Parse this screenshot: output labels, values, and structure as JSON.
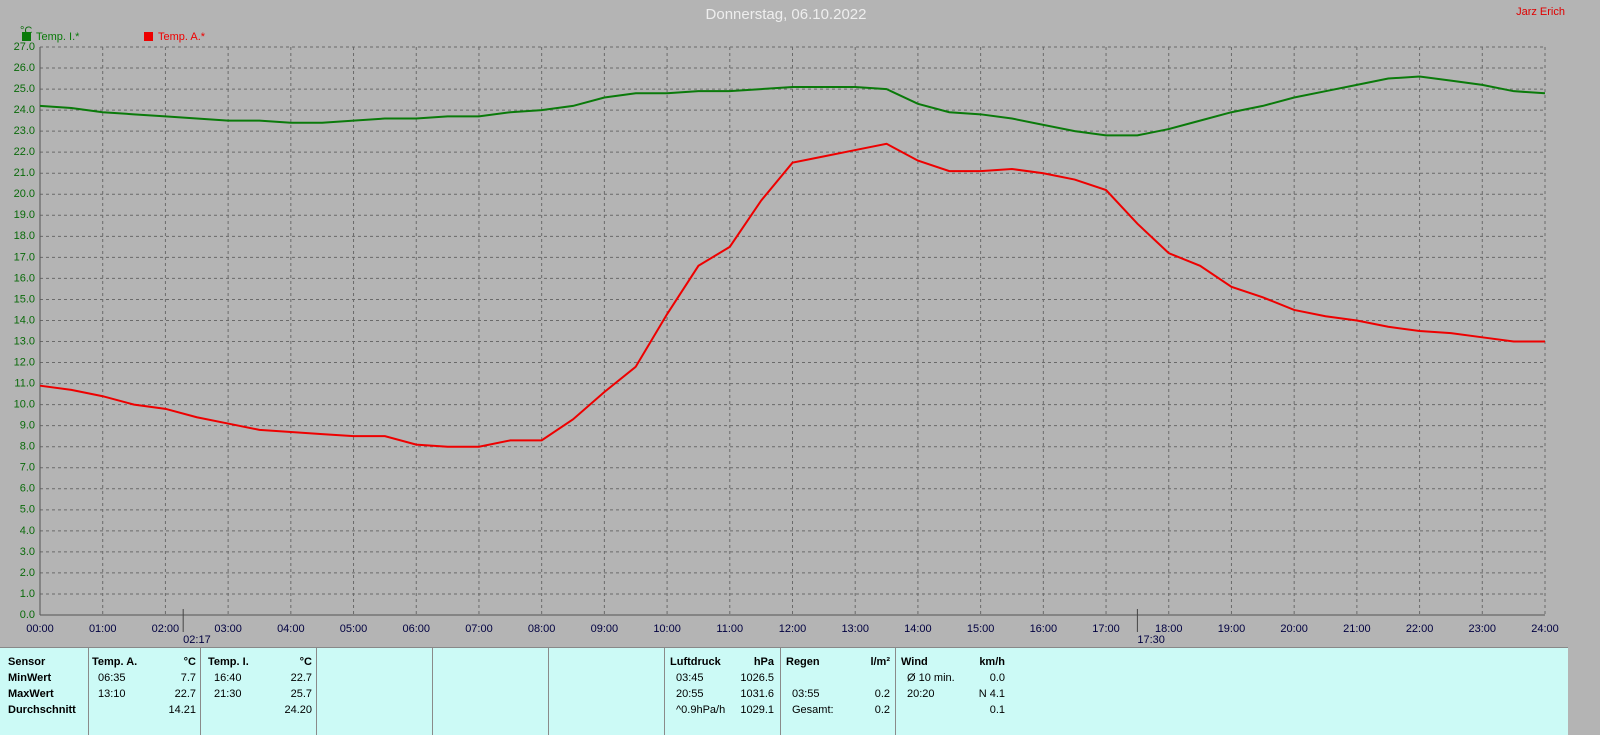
{
  "chart_data": {
    "type": "line",
    "title": "Donnerstag, 06.10.2022",
    "author": "Jarz Erich",
    "y_label": "°C",
    "x": [
      0,
      0.5,
      1,
      1.5,
      2,
      2.5,
      3,
      3.5,
      4,
      4.5,
      5,
      5.5,
      6,
      6.5,
      7,
      7.5,
      8,
      8.5,
      9,
      9.5,
      10,
      10.5,
      11,
      11.5,
      12,
      12.5,
      13,
      13.5,
      14,
      14.5,
      15,
      15.5,
      16,
      16.5,
      17,
      17.5,
      18,
      18.5,
      19,
      19.5,
      20,
      20.5,
      21,
      21.5,
      22,
      22.5,
      23,
      23.5,
      24
    ],
    "series": [
      {
        "name": "Temp. I.*",
        "color": "#0a7a0a",
        "values": [
          24.2,
          24.1,
          23.9,
          23.8,
          23.7,
          23.6,
          23.5,
          23.5,
          23.4,
          23.4,
          23.5,
          23.6,
          23.6,
          23.7,
          23.7,
          23.9,
          24.0,
          24.2,
          24.6,
          24.8,
          24.8,
          24.9,
          24.9,
          25.0,
          25.1,
          25.1,
          25.1,
          25.0,
          24.3,
          23.9,
          23.8,
          23.6,
          23.3,
          23.0,
          22.8,
          22.8,
          23.1,
          23.5,
          23.9,
          24.2,
          24.6,
          24.9,
          25.2,
          25.5,
          25.6,
          25.4,
          25.2,
          24.9,
          24.8
        ]
      },
      {
        "name": "Temp. A.*",
        "color": "#ee0000",
        "values": [
          10.9,
          10.7,
          10.4,
          10.0,
          9.8,
          9.4,
          9.1,
          8.8,
          8.7,
          8.6,
          8.5,
          8.5,
          8.1,
          8.0,
          8.0,
          8.3,
          8.3,
          9.3,
          10.6,
          11.8,
          14.3,
          16.6,
          17.5,
          19.7,
          21.5,
          21.8,
          22.1,
          22.4,
          21.6,
          21.1,
          21.1,
          21.2,
          21.0,
          20.7,
          20.2,
          18.6,
          17.2,
          16.6,
          15.6,
          15.1,
          14.5,
          14.2,
          14.0,
          13.7,
          13.5,
          13.4,
          13.2,
          13.0,
          13.0
        ]
      }
    ],
    "xlim": [
      0,
      24
    ],
    "ylim": [
      0,
      27
    ],
    "grid": true,
    "xticks": [
      {
        "value": 0,
        "label": "00:00"
      },
      {
        "value": 1,
        "label": "01:00"
      },
      {
        "value": 2,
        "label": "02:00"
      },
      {
        "value": 3,
        "label": "03:00"
      },
      {
        "value": 4,
        "label": "04:00"
      },
      {
        "value": 5,
        "label": "05:00"
      },
      {
        "value": 6,
        "label": "06:00"
      },
      {
        "value": 7,
        "label": "07:00"
      },
      {
        "value": 8,
        "label": "08:00"
      },
      {
        "value": 9,
        "label": "09:00"
      },
      {
        "value": 10,
        "label": "10:00"
      },
      {
        "value": 11,
        "label": "11:00"
      },
      {
        "value": 12,
        "label": "12:00"
      },
      {
        "value": 13,
        "label": "13:00"
      },
      {
        "value": 14,
        "label": "14:00"
      },
      {
        "value": 15,
        "label": "15:00"
      },
      {
        "value": 16,
        "label": "16:00"
      },
      {
        "value": 17,
        "label": "17:00"
      },
      {
        "value": 18,
        "label": "18:00"
      },
      {
        "value": 19,
        "label": "19:00"
      },
      {
        "value": 20,
        "label": "20:00"
      },
      {
        "value": 21,
        "label": "21:00"
      },
      {
        "value": 22,
        "label": "22:00"
      },
      {
        "value": 23,
        "label": "23:00"
      },
      {
        "value": 24,
        "label": "24:00"
      }
    ],
    "yticks": [
      {
        "value": 0,
        "label": "0.0"
      },
      {
        "value": 1,
        "label": "1.0"
      },
      {
        "value": 2,
        "label": "2.0"
      },
      {
        "value": 3,
        "label": "3.0"
      },
      {
        "value": 4,
        "label": "4.0"
      },
      {
        "value": 5,
        "label": "5.0"
      },
      {
        "value": 6,
        "label": "6.0"
      },
      {
        "value": 7,
        "label": "7.0"
      },
      {
        "value": 8,
        "label": "8.0"
      },
      {
        "value": 9,
        "label": "9.0"
      },
      {
        "value": 10,
        "label": "10.0"
      },
      {
        "value": 11,
        "label": "11.0"
      },
      {
        "value": 12,
        "label": "12.0"
      },
      {
        "value": 13,
        "label": "13.0"
      },
      {
        "value": 14,
        "label": "14.0"
      },
      {
        "value": 15,
        "label": "15.0"
      },
      {
        "value": 16,
        "label": "16.0"
      },
      {
        "value": 17,
        "label": "17.0"
      },
      {
        "value": 18,
        "label": "18.0"
      },
      {
        "value": 19,
        "label": "19.0"
      },
      {
        "value": 20,
        "label": "20.0"
      },
      {
        "value": 21,
        "label": "21.0"
      },
      {
        "value": 22,
        "label": "22.0"
      },
      {
        "value": 23,
        "label": "23.0"
      },
      {
        "value": 24,
        "label": "24.0"
      },
      {
        "value": 25,
        "label": "25.0"
      },
      {
        "value": 26,
        "label": "26.0"
      },
      {
        "value": 27,
        "label": "27.0"
      }
    ],
    "events": [
      {
        "x": 2.2833,
        "label": "02:17"
      },
      {
        "x": 17.5,
        "label": "17:30"
      }
    ]
  },
  "table": {
    "row_labels": [
      "Sensor",
      "MinWert",
      "MaxWert",
      "Durchschnitt"
    ],
    "sections": [
      {
        "title": "Temp. A.",
        "unit": "°C",
        "rows": [
          [
            "06:35",
            "7.7"
          ],
          [
            "13:10",
            "22.7"
          ],
          [
            null,
            "14.21"
          ]
        ]
      },
      {
        "title": "Temp. I.",
        "unit": "°C",
        "rows": [
          [
            "16:40",
            "22.7"
          ],
          [
            "21:30",
            "25.7"
          ],
          [
            null,
            "24.20"
          ]
        ]
      },
      {
        "title": "Luftdruck",
        "unit": "hPa",
        "rows": [
          [
            "03:45",
            "1026.5"
          ],
          [
            "20:55",
            "1031.6"
          ],
          [
            "^0.9hPa/h",
            "1029.1"
          ]
        ]
      },
      {
        "title": "Regen",
        "unit": "l/m²",
        "rows": [
          [
            null,
            null
          ],
          [
            "03:55",
            "0.2"
          ],
          [
            "Gesamt:",
            "0.2"
          ]
        ]
      },
      {
        "title": "Wind",
        "unit": "km/h",
        "rows": [
          [
            "Ø 10 min.",
            "0.0"
          ],
          [
            "20:20",
            "N 4.1"
          ],
          [
            null,
            "0.1"
          ]
        ]
      }
    ]
  }
}
